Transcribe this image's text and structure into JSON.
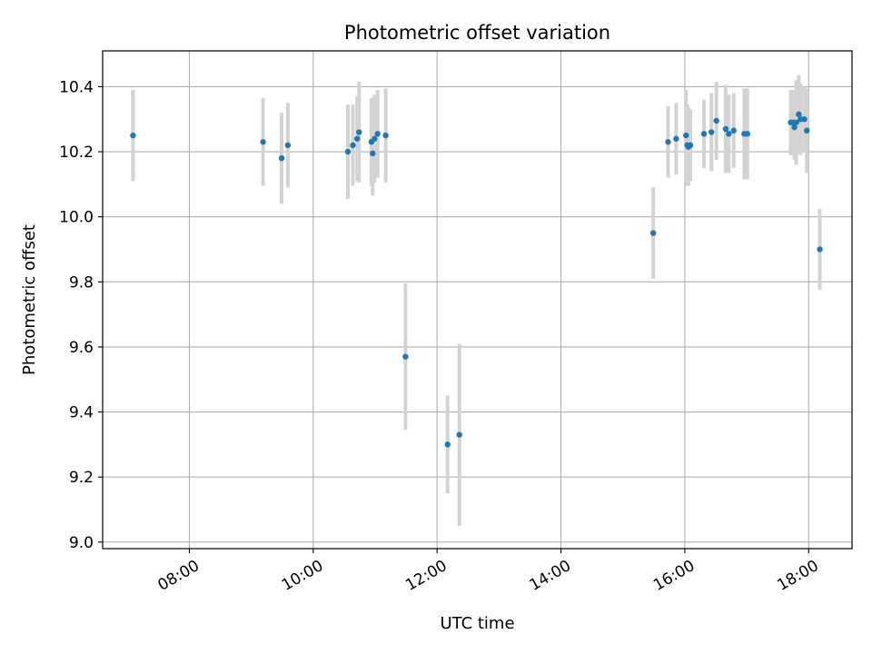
{
  "chart_data": {
    "type": "scatter",
    "title": "Photometric offset variation",
    "xlabel": "UTC time",
    "ylabel": "Photometric offset",
    "x_unit": "hours UTC",
    "xlim": [
      6.6,
      18.7
    ],
    "ylim": [
      8.98,
      10.51
    ],
    "x_ticks": [
      {
        "value": 8,
        "label": "08:00"
      },
      {
        "value": 10,
        "label": "10:00"
      },
      {
        "value": 12,
        "label": "12:00"
      },
      {
        "value": 14,
        "label": "14:00"
      },
      {
        "value": 16,
        "label": "16:00"
      },
      {
        "value": 18,
        "label": "18:00"
      }
    ],
    "y_ticks": [
      {
        "value": 9.0,
        "label": "9.0"
      },
      {
        "value": 9.2,
        "label": "9.2"
      },
      {
        "value": 9.4,
        "label": "9.4"
      },
      {
        "value": 9.6,
        "label": "9.6"
      },
      {
        "value": 9.8,
        "label": "9.8"
      },
      {
        "value": 10.0,
        "label": "10.0"
      },
      {
        "value": 10.2,
        "label": "10.2"
      },
      {
        "value": 10.4,
        "label": "10.4"
      }
    ],
    "grid": true,
    "colors": {
      "point": "#1f77b4",
      "errorbar": "#d3d3d3",
      "grid": "#b0b0b0",
      "axes": "#000000"
    },
    "series": [
      {
        "points": [
          {
            "x": 7.09,
            "y": 10.25,
            "err": 0.14
          },
          {
            "x": 9.19,
            "y": 10.23,
            "err": 0.135
          },
          {
            "x": 9.49,
            "y": 10.18,
            "err": 0.14
          },
          {
            "x": 9.59,
            "y": 10.22,
            "err": 0.13
          },
          {
            "x": 10.56,
            "y": 10.2,
            "err": 0.145
          },
          {
            "x": 10.64,
            "y": 10.22,
            "err": 0.125
          },
          {
            "x": 10.71,
            "y": 10.24,
            "err": 0.13
          },
          {
            "x": 10.74,
            "y": 10.26,
            "err": 0.155
          },
          {
            "x": 10.94,
            "y": 10.23,
            "err": 0.135
          },
          {
            "x": 10.96,
            "y": 10.195,
            "err": 0.13
          },
          {
            "x": 10.99,
            "y": 10.24,
            "err": 0.135
          },
          {
            "x": 11.04,
            "y": 10.255,
            "err": 0.135
          },
          {
            "x": 11.17,
            "y": 10.25,
            "err": 0.145
          },
          {
            "x": 11.49,
            "y": 9.57,
            "err": 0.225
          },
          {
            "x": 12.17,
            "y": 9.3,
            "err": 0.15
          },
          {
            "x": 12.36,
            "y": 9.33,
            "err": 0.28
          },
          {
            "x": 15.49,
            "y": 9.95,
            "err": 0.14
          },
          {
            "x": 15.73,
            "y": 10.23,
            "err": 0.11
          },
          {
            "x": 15.86,
            "y": 10.24,
            "err": 0.11
          },
          {
            "x": 16.02,
            "y": 10.25,
            "err": 0.14
          },
          {
            "x": 16.04,
            "y": 10.22,
            "err": 0.125
          },
          {
            "x": 16.06,
            "y": 10.215,
            "err": 0.12
          },
          {
            "x": 16.09,
            "y": 10.22,
            "err": 0.11
          },
          {
            "x": 16.31,
            "y": 10.255,
            "err": 0.105
          },
          {
            "x": 16.43,
            "y": 10.26,
            "err": 0.12
          },
          {
            "x": 16.51,
            "y": 10.295,
            "err": 0.12
          },
          {
            "x": 16.66,
            "y": 10.27,
            "err": 0.135
          },
          {
            "x": 16.71,
            "y": 10.255,
            "err": 0.12
          },
          {
            "x": 16.79,
            "y": 10.265,
            "err": 0.115
          },
          {
            "x": 16.96,
            "y": 10.255,
            "err": 0.14
          },
          {
            "x": 17.01,
            "y": 10.255,
            "err": 0.14
          },
          {
            "x": 17.71,
            "y": 10.29,
            "err": 0.1
          },
          {
            "x": 17.75,
            "y": 10.29,
            "err": 0.1
          },
          {
            "x": 17.77,
            "y": 10.275,
            "err": 0.1
          },
          {
            "x": 17.8,
            "y": 10.29,
            "err": 0.13
          },
          {
            "x": 17.84,
            "y": 10.315,
            "err": 0.12
          },
          {
            "x": 17.87,
            "y": 10.3,
            "err": 0.11
          },
          {
            "x": 17.93,
            "y": 10.3,
            "err": 0.1
          },
          {
            "x": 17.97,
            "y": 10.265,
            "err": 0.13
          },
          {
            "x": 18.18,
            "y": 9.9,
            "err": 0.125
          }
        ]
      }
    ]
  }
}
